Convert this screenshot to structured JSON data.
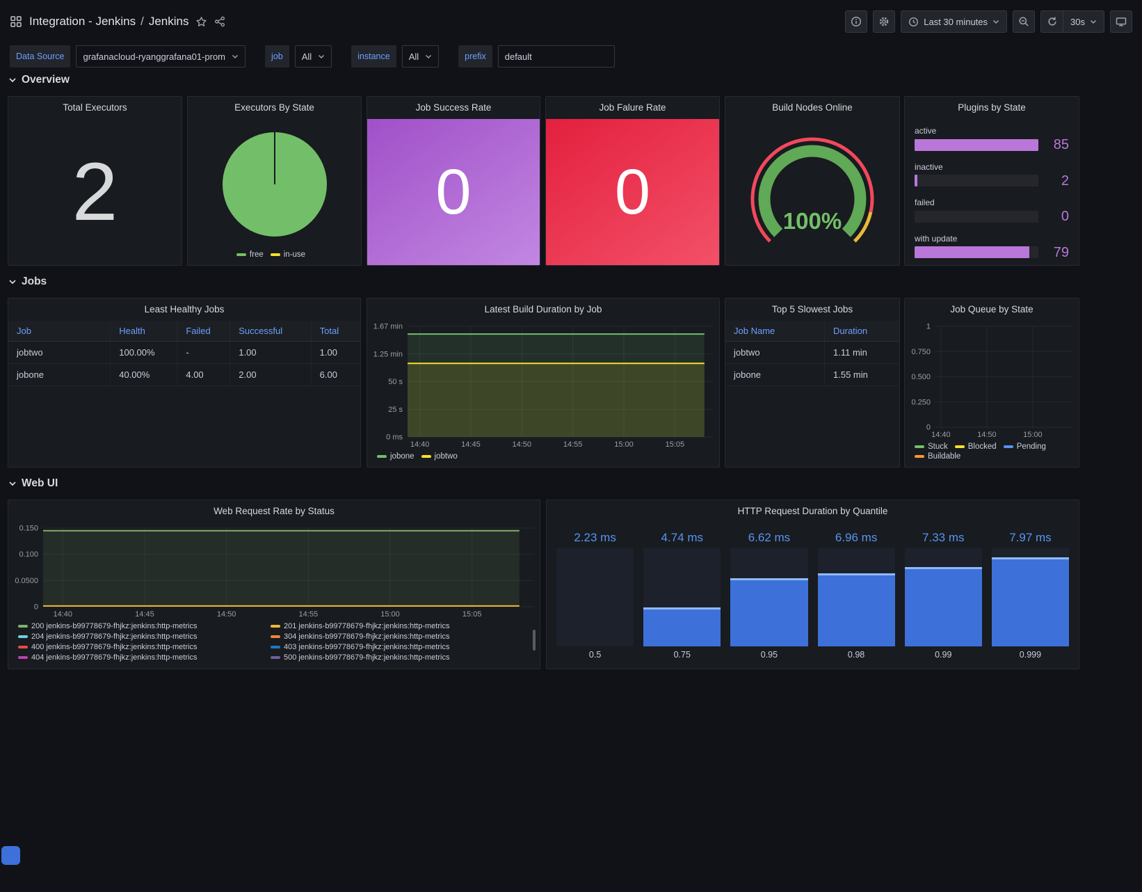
{
  "header": {
    "folder": "Integration - Jenkins",
    "separator": "/",
    "dashboard": "Jenkins",
    "time_range": "Last 30 minutes",
    "refresh": "30s"
  },
  "variables": {
    "datasource": {
      "label": "Data Source",
      "value": "grafanacloud-ryanggrafana01-prom"
    },
    "job": {
      "label": "job",
      "value": "All"
    },
    "instance": {
      "label": "instance",
      "value": "All"
    },
    "prefix": {
      "label": "prefix",
      "value": "default"
    }
  },
  "sections": {
    "overview": "Overview",
    "jobs": "Jobs",
    "web_ui": "Web UI"
  },
  "stats": {
    "total_executors": {
      "title": "Total Executors",
      "value": "2",
      "color": "#d8d9da"
    },
    "job_success_rate": {
      "title": "Job Success Rate",
      "value": "0",
      "bg_from": "#a050c8",
      "bg_to": "#c287e2"
    },
    "job_failure_rate": {
      "title": "Job Falure Rate",
      "value": "0",
      "bg_from": "#e3203e",
      "bg_to": "#f35068"
    }
  },
  "tables": {
    "least_healthy_jobs": {
      "title": "Least Healthy Jobs",
      "headers": [
        "Job",
        "Health",
        "Failed",
        "Successful",
        "Total"
      ],
      "rows": [
        [
          "jobtwo",
          "100.00%",
          "-",
          "1.00",
          "1.00"
        ],
        [
          "jobone",
          "40.00%",
          "4.00",
          "2.00",
          "6.00"
        ]
      ]
    },
    "top_slowest_jobs": {
      "title": "Top 5 Slowest Jobs",
      "headers": [
        "Job Name",
        "Duration"
      ],
      "rows": [
        [
          "jobtwo",
          "1.11 min"
        ],
        [
          "jobone",
          "1.55 min"
        ]
      ]
    }
  },
  "chart_data": [
    {
      "id": "executors_by_state",
      "type": "pie",
      "title": "Executors By State",
      "slices": [
        {
          "label": "free",
          "value": 2,
          "color": "#73bf69"
        },
        {
          "label": "in-use",
          "value": 0,
          "color": "#fade2a"
        }
      ]
    },
    {
      "id": "build_nodes_online",
      "type": "gauge",
      "title": "Build Nodes Online",
      "value_text": "100%",
      "percent": 100,
      "arc_color": "#60a957",
      "value_color": "#73bf69",
      "threshold_ring": [
        {
          "to": 0.88,
          "color": "#f2495c"
        },
        {
          "to": 1,
          "color": "#eab839"
        }
      ]
    },
    {
      "id": "plugins_by_state",
      "type": "bar",
      "orientation": "horizontal",
      "title": "Plugins by State",
      "categories": [
        "active",
        "inactive",
        "failed",
        "with update"
      ],
      "values": [
        85,
        2,
        0,
        79
      ],
      "bar_color": "#b877d9",
      "value_color": "#b877d9"
    },
    {
      "id": "latest_build_duration",
      "type": "line",
      "title": "Latest Build Duration by Job",
      "y_tick_labels": [
        "1.67 min",
        "1.25 min",
        "50 s",
        "25 s",
        "0 ms"
      ],
      "ymax": 100,
      "x_tick_labels": [
        "14:40",
        "14:45",
        "14:50",
        "14:55",
        "15:00",
        "15:05"
      ],
      "series": [
        {
          "name": "jobone",
          "color": "#73bf69",
          "value": 93
        },
        {
          "name": "jobtwo",
          "color": "#fade2a",
          "value": 66.5
        }
      ],
      "fill_opacity": 0.13
    },
    {
      "id": "job_queue_by_state",
      "type": "line",
      "title": "Job Queue by State",
      "y_tick_labels": [
        "1",
        "0.750",
        "0.500",
        "0.250",
        "0"
      ],
      "ymax": 1,
      "x_tick_labels": [
        "14:40",
        "14:50",
        "15:00"
      ],
      "series": [
        {
          "name": "Stuck",
          "color": "#73bf69",
          "value": null
        },
        {
          "name": "Blocked",
          "color": "#fade2a",
          "value": null
        },
        {
          "name": "Pending",
          "color": "#5794f2",
          "value": null
        },
        {
          "name": "Buildable",
          "color": "#ff9830",
          "value": null
        }
      ],
      "fill_opacity": 0.13
    },
    {
      "id": "web_request_rate",
      "type": "line",
      "title": "Web Request Rate by Status",
      "y_tick_labels": [
        "0.150",
        "0.100",
        "0.0500",
        "0"
      ],
      "ymax": 0.15,
      "x_tick_labels": [
        "14:40",
        "14:45",
        "14:50",
        "14:55",
        "15:00",
        "15:05"
      ],
      "series": [
        {
          "name": "200 jenkins-b99778679-fhjkz:jenkins:http-metrics",
          "color": "#7eb26d",
          "value": 0.145
        },
        {
          "name": "201 jenkins-b99778679-fhjkz:jenkins:http-metrics",
          "color": "#eab839",
          "value": 0.0015
        },
        {
          "name": "204 jenkins-b99778679-fhjkz:jenkins:http-metrics",
          "color": "#6ed0e0",
          "value": null
        },
        {
          "name": "304 jenkins-b99778679-fhjkz:jenkins:http-metrics",
          "color": "#ef843c",
          "value": null
        },
        {
          "name": "400 jenkins-b99778679-fhjkz:jenkins:http-metrics",
          "color": "#e24d42",
          "value": null
        },
        {
          "name": "403 jenkins-b99778679-fhjkz:jenkins:http-metrics",
          "color": "#1f78c1",
          "value": null
        },
        {
          "name": "404 jenkins-b99778679-fhjkz:jenkins:http-metrics",
          "color": "#ba43a9",
          "value": null
        },
        {
          "name": "500 jenkins-b99778679-fhjkz:jenkins:http-metrics",
          "color": "#705da0",
          "value": null
        }
      ],
      "fill_opacity": 0.12
    },
    {
      "id": "http_request_duration",
      "type": "bar",
      "orientation": "vertical",
      "title": "HTTP Request Duration by Quantile",
      "categories": [
        "0.5",
        "0.75",
        "0.95",
        "0.98",
        "0.99",
        "0.999"
      ],
      "values": [
        2.23,
        4.74,
        6.62,
        6.96,
        7.33,
        7.97
      ],
      "value_labels": [
        "2.23 ms",
        "4.74 ms",
        "6.62 ms",
        "6.96 ms",
        "7.33 ms",
        "7.97 ms"
      ],
      "ylim": [
        2.23,
        8.6
      ],
      "bar_color": "#3d71d9",
      "value_color": "#5794f2"
    }
  ]
}
